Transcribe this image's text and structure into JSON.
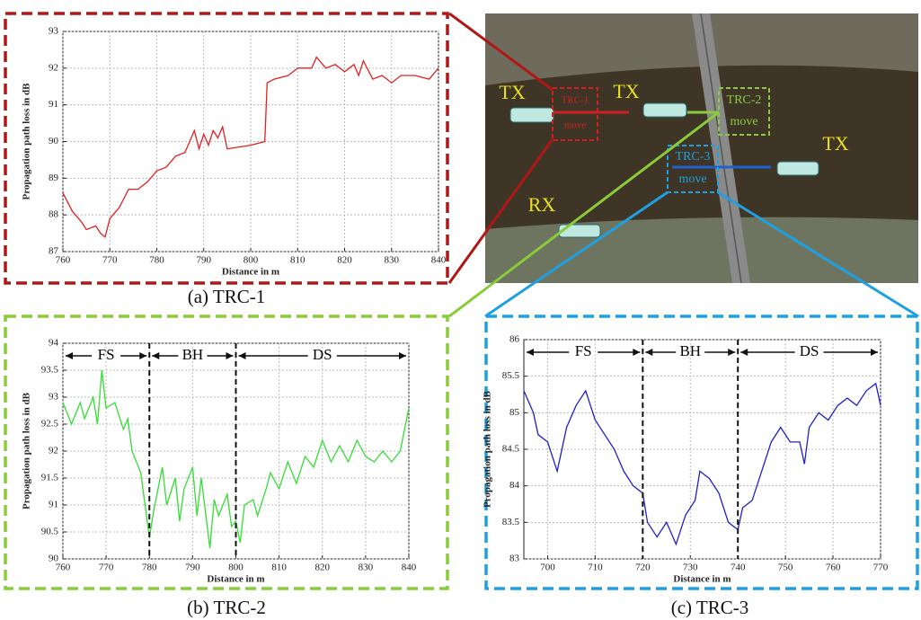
{
  "chart_data": [
    {
      "type": "line",
      "caption": "(a) TRC-1",
      "x_label": "Distance in m",
      "y_label": "Propagation path loss in dB",
      "xlim": [
        760,
        840
      ],
      "xticks": [
        760,
        770,
        780,
        790,
        800,
        810,
        820,
        830,
        840
      ],
      "ylim": [
        87,
        93
      ],
      "yticks": [
        87,
        88,
        89,
        90,
        91,
        92,
        93
      ],
      "grid": true,
      "series": [
        {
          "color": "#e02020",
          "x": [
            760,
            762,
            764,
            765,
            767,
            768,
            769,
            770,
            772,
            774,
            776,
            778,
            780,
            782,
            784,
            786,
            787,
            788,
            789,
            790,
            791,
            792,
            793,
            794,
            795,
            800,
            803,
            803.5,
            805,
            808,
            810,
            813,
            814,
            816,
            818,
            820,
            822,
            823,
            824,
            826,
            828,
            830,
            832,
            835,
            838,
            840
          ],
          "values": [
            88.6,
            88.1,
            87.8,
            87.6,
            87.7,
            87.5,
            87.4,
            87.9,
            88.2,
            88.7,
            88.7,
            88.9,
            89.2,
            89.3,
            89.6,
            89.7,
            90.0,
            90.3,
            89.8,
            90.2,
            89.9,
            90.3,
            90.1,
            90.4,
            89.8,
            89.9,
            90.0,
            91.6,
            91.7,
            91.8,
            92.0,
            92.0,
            92.3,
            92.0,
            92.1,
            91.9,
            92.1,
            91.8,
            92.2,
            91.7,
            91.8,
            91.6,
            91.8,
            91.8,
            91.7,
            92.0
          ]
        }
      ]
    },
    {
      "type": "line",
      "caption": "(b) TRC-2",
      "x_label": "Distance in m",
      "y_label": "Propagation path loss in dB",
      "xlim": [
        760,
        840
      ],
      "xticks": [
        760,
        770,
        780,
        790,
        800,
        810,
        820,
        830,
        840
      ],
      "ylim": [
        90,
        94
      ],
      "yticks": [
        90,
        90.5,
        91,
        91.5,
        92,
        92.5,
        93,
        93.5,
        94
      ],
      "grid": true,
      "dividers": [
        780,
        800
      ],
      "regions": [
        "FS",
        "BH",
        "DS"
      ],
      "series": [
        {
          "color": "#33dd33",
          "x": [
            760,
            762,
            764,
            765,
            767,
            768,
            769,
            770,
            772,
            774,
            775,
            776,
            778,
            779,
            780,
            781,
            782,
            783,
            784,
            786,
            787,
            788,
            790,
            791,
            792,
            794,
            795,
            796,
            798,
            799,
            800,
            801,
            802,
            804,
            805,
            807,
            808,
            810,
            812,
            814,
            816,
            818,
            820,
            822,
            824,
            826,
            828,
            830,
            832,
            834,
            836,
            838,
            840
          ],
          "values": [
            92.9,
            92.5,
            92.9,
            92.6,
            93.0,
            92.5,
            93.5,
            92.8,
            92.9,
            92.4,
            92.6,
            92.0,
            91.6,
            91.0,
            90.4,
            90.9,
            91.3,
            91.7,
            91.0,
            91.5,
            90.7,
            91.3,
            91.7,
            90.8,
            91.5,
            90.2,
            91.1,
            90.8,
            91.2,
            90.6,
            90.7,
            90.3,
            91.0,
            91.1,
            90.8,
            91.3,
            91.6,
            91.3,
            91.8,
            91.4,
            91.9,
            91.7,
            92.2,
            91.8,
            92.1,
            91.8,
            92.2,
            91.9,
            91.8,
            92.0,
            91.8,
            92.0,
            92.8
          ]
        }
      ]
    },
    {
      "type": "line",
      "caption": "(c) TRC-3",
      "x_label": "Distance in m",
      "y_label": "Propagation path loss in dB",
      "xlim": [
        695,
        770
      ],
      "xticks": [
        700,
        710,
        720,
        730,
        740,
        750,
        760,
        770
      ],
      "ylim": [
        83,
        86
      ],
      "yticks": [
        83,
        83.5,
        84,
        84.5,
        85,
        85.5,
        86
      ],
      "grid": true,
      "dividers": [
        720,
        740
      ],
      "regions": [
        "FS",
        "BH",
        "DS"
      ],
      "series": [
        {
          "color": "#1f1fcc",
          "x": [
            695,
            697,
            698,
            700,
            702,
            704,
            706,
            708,
            710,
            712,
            714,
            716,
            718,
            720,
            721,
            723,
            725,
            727,
            729,
            731,
            732,
            734,
            736,
            738,
            740,
            741,
            743,
            745,
            747,
            749,
            751,
            753,
            754,
            755,
            757,
            759,
            761,
            763,
            765,
            767,
            769,
            770
          ],
          "values": [
            85.3,
            85.0,
            84.7,
            84.6,
            84.2,
            84.8,
            85.1,
            85.3,
            84.9,
            84.7,
            84.5,
            84.2,
            84.0,
            83.9,
            83.5,
            83.3,
            83.5,
            83.2,
            83.6,
            83.8,
            84.2,
            84.1,
            83.9,
            83.5,
            83.4,
            83.7,
            83.8,
            84.2,
            84.6,
            84.8,
            84.6,
            84.6,
            84.3,
            84.8,
            85.0,
            84.9,
            85.1,
            85.2,
            85.1,
            85.3,
            85.4,
            85.1
          ]
        }
      ]
    }
  ],
  "map": {
    "labels": [
      "TX",
      "TX",
      "TX",
      "RX",
      "TRC-1",
      "move",
      "TRC-2",
      "move",
      "TRC-3",
      "move"
    ]
  }
}
